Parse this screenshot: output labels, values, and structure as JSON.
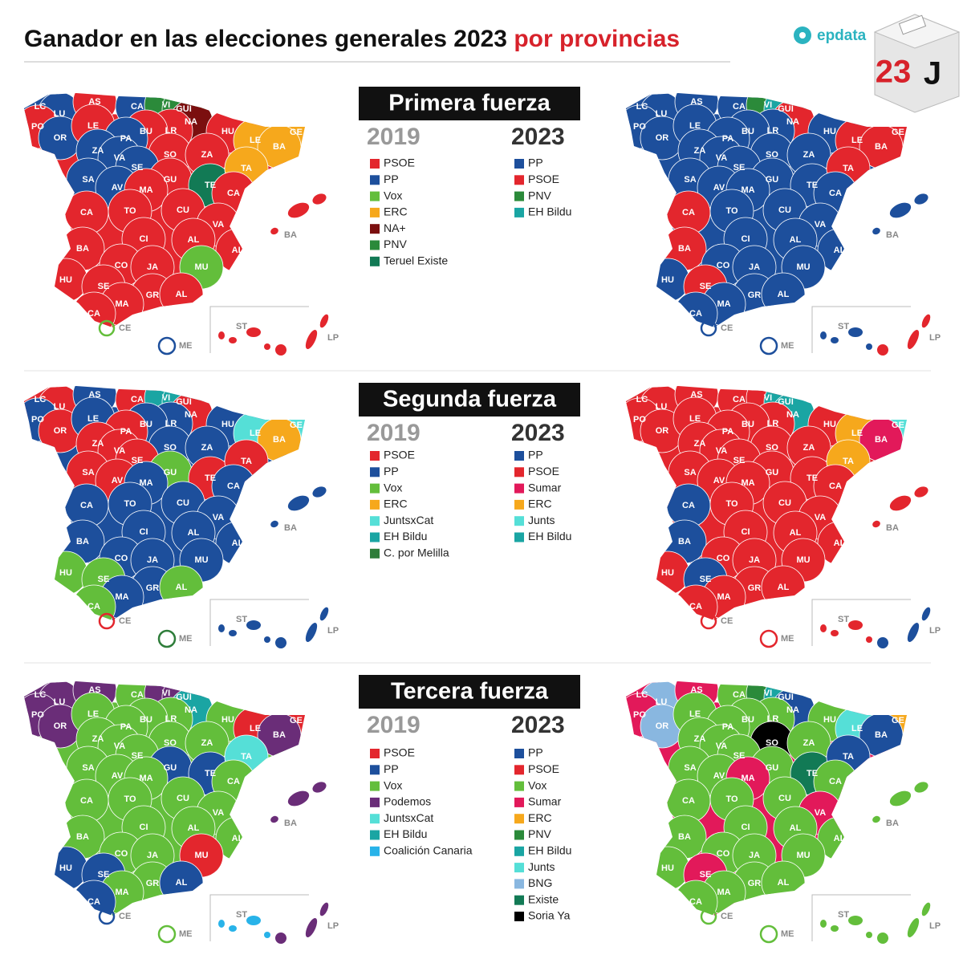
{
  "header": {
    "title": "Ganador en las elecciones generales 2023",
    "title_highlight": "por provincias",
    "brand": "epdata",
    "badge_number": "23",
    "badge_letter": "J"
  },
  "sections": [
    {
      "title": "Primera fuerza",
      "legends": [
        {
          "year": "2019",
          "items": [
            {
              "label": "PSOE",
              "color": "#e3262d"
            },
            {
              "label": "PP",
              "color": "#1d4f9c"
            },
            {
              "label": "Vox",
              "color": "#63be3b"
            },
            {
              "label": "ERC",
              "color": "#f6a81c"
            },
            {
              "label": "NA+",
              "color": "#7b0f0f"
            },
            {
              "label": "PNV",
              "color": "#2b8a3a"
            },
            {
              "label": "Teruel Existe",
              "color": "#127a55"
            }
          ]
        },
        {
          "year": "2023",
          "items": [
            {
              "label": "PP",
              "color": "#1d4f9c"
            },
            {
              "label": "PSOE",
              "color": "#e3262d"
            },
            {
              "label": "PNV",
              "color": "#2b8a3a"
            },
            {
              "label": "EH Bildu",
              "color": "#1aa5a3"
            }
          ]
        }
      ],
      "maps": [
        {
          "labels": [
            "LC",
            "LU",
            "PO",
            "OR",
            "AS",
            "LE",
            "CA",
            "VI",
            "GUI",
            "NA",
            "LR",
            "BU",
            "PA",
            "HU",
            "LE",
            "GE",
            "BA",
            "ZA",
            "VA",
            "SO",
            "ZA",
            "SA",
            "SE",
            "AV",
            "GU",
            "TE",
            "TA",
            "CA",
            "MA",
            "CA",
            "TO",
            "CU",
            "VA",
            "CI",
            "AL",
            "AL",
            "BA",
            "CO",
            "JA",
            "MU",
            "HU",
            "SE",
            "GR",
            "AL",
            "MA",
            "CA",
            "BA",
            "CE",
            "ME",
            "ST",
            "LP"
          ],
          "winners": [
            1,
            1,
            0,
            1,
            0,
            0,
            1,
            5,
            5,
            4,
            0,
            0,
            1,
            0,
            3,
            3,
            3,
            1,
            1,
            0,
            0,
            1,
            1,
            1,
            0,
            6,
            3,
            0,
            0,
            0,
            0,
            0,
            0,
            0,
            0,
            0,
            0,
            0,
            0,
            2,
            0,
            0,
            0,
            0,
            0,
            0,
            0,
            2,
            1,
            0,
            0
          ]
        },
        {
          "labels": [
            "LC",
            "LU",
            "PO",
            "OR",
            "AS",
            "LE",
            "CA",
            "VI",
            "GUI",
            "NA",
            "LR",
            "BU",
            "PA",
            "HU",
            "LE",
            "GE",
            "BA",
            "ZA",
            "VA",
            "SO",
            "ZA",
            "SA",
            "SE",
            "AV",
            "GU",
            "TE",
            "TA",
            "CA",
            "MA",
            "CA",
            "TO",
            "CU",
            "VA",
            "CI",
            "AL",
            "AL",
            "BA",
            "CO",
            "JA",
            "MU",
            "HU",
            "SE",
            "GR",
            "AL",
            "MA",
            "CA",
            "BA",
            "CE",
            "ME",
            "ST",
            "LP"
          ],
          "winners": [
            0,
            0,
            0,
            0,
            0,
            0,
            0,
            2,
            3,
            1,
            0,
            0,
            0,
            0,
            1,
            1,
            1,
            0,
            0,
            0,
            0,
            0,
            0,
            0,
            0,
            0,
            1,
            0,
            0,
            1,
            0,
            0,
            0,
            0,
            0,
            0,
            1,
            0,
            0,
            0,
            0,
            1,
            0,
            0,
            0,
            0,
            0,
            0,
            0,
            0,
            1
          ]
        }
      ]
    },
    {
      "title": "Segunda fuerza",
      "legends": [
        {
          "year": "2019",
          "items": [
            {
              "label": "PSOE",
              "color": "#e3262d"
            },
            {
              "label": "PP",
              "color": "#1d4f9c"
            },
            {
              "label": "Vox",
              "color": "#63be3b"
            },
            {
              "label": "ERC",
              "color": "#f6a81c"
            },
            {
              "label": "JuntsxCat",
              "color": "#55dfd7"
            },
            {
              "label": "EH Bildu",
              "color": "#1aa5a3"
            },
            {
              "label": "C. por Melilla",
              "color": "#2e7d3a"
            }
          ]
        },
        {
          "year": "2023",
          "items": [
            {
              "label": "PP",
              "color": "#1d4f9c"
            },
            {
              "label": "PSOE",
              "color": "#e3262d"
            },
            {
              "label": "Sumar",
              "color": "#e2195a"
            },
            {
              "label": "ERC",
              "color": "#f6a81c"
            },
            {
              "label": "Junts",
              "color": "#55dfd7"
            },
            {
              "label": "EH Bildu",
              "color": "#1aa5a3"
            }
          ]
        }
      ],
      "maps": [
        {
          "labels": [
            "LC",
            "LU",
            "PO",
            "OR",
            "AS",
            "LE",
            "CA",
            "VI",
            "GUI",
            "NA",
            "LR",
            "BU",
            "PA",
            "HU",
            "LE",
            "GE",
            "BA",
            "ZA",
            "VA",
            "SO",
            "ZA",
            "SA",
            "SE",
            "AV",
            "GU",
            "TE",
            "TA",
            "CA",
            "MA",
            "CA",
            "TO",
            "CU",
            "VA",
            "CI",
            "AL",
            "AL",
            "BA",
            "CO",
            "JA",
            "MU",
            "HU",
            "SE",
            "GR",
            "AL",
            "MA",
            "CA",
            "BA",
            "CE",
            "ME",
            "ST",
            "LP"
          ],
          "winners": [
            0,
            0,
            1,
            0,
            1,
            1,
            0,
            5,
            5,
            0,
            1,
            1,
            0,
            1,
            4,
            4,
            3,
            0,
            0,
            1,
            1,
            0,
            0,
            0,
            2,
            0,
            0,
            1,
            1,
            1,
            1,
            1,
            1,
            1,
            1,
            1,
            1,
            1,
            1,
            1,
            2,
            2,
            1,
            2,
            1,
            2,
            1,
            0,
            6,
            1,
            1
          ]
        },
        {
          "labels": [
            "LC",
            "LU",
            "PO",
            "OR",
            "AS",
            "LE",
            "CA",
            "VI",
            "GUI",
            "NA",
            "LR",
            "BU",
            "PA",
            "HU",
            "LE",
            "GE",
            "BA",
            "ZA",
            "VA",
            "SO",
            "ZA",
            "SA",
            "SE",
            "AV",
            "GU",
            "TE",
            "TA",
            "CA",
            "MA",
            "CA",
            "TO",
            "CU",
            "VA",
            "CI",
            "AL",
            "AL",
            "BA",
            "CO",
            "JA",
            "MU",
            "HU",
            "SE",
            "GR",
            "AL",
            "MA",
            "CA",
            "BA",
            "CE",
            "ME",
            "ST",
            "LP"
          ],
          "winners": [
            1,
            1,
            1,
            1,
            1,
            1,
            1,
            1,
            5,
            5,
            1,
            1,
            1,
            1,
            3,
            4,
            2,
            1,
            1,
            1,
            1,
            1,
            1,
            1,
            1,
            1,
            3,
            1,
            1,
            0,
            1,
            1,
            1,
            1,
            1,
            1,
            0,
            1,
            1,
            1,
            1,
            0,
            1,
            1,
            1,
            1,
            1,
            1,
            1,
            1,
            0
          ]
        }
      ]
    },
    {
      "title": "Tercera fuerza",
      "legends": [
        {
          "year": "2019",
          "items": [
            {
              "label": "PSOE",
              "color": "#e3262d"
            },
            {
              "label": "PP",
              "color": "#1d4f9c"
            },
            {
              "label": "Vox",
              "color": "#63be3b"
            },
            {
              "label": "Podemos",
              "color": "#6a2d78"
            },
            {
              "label": "JuntsxCat",
              "color": "#55dfd7"
            },
            {
              "label": "EH Bildu",
              "color": "#1aa5a3"
            },
            {
              "label": "Coalición Canaria",
              "color": "#28b3e9"
            }
          ]
        },
        {
          "year": "2023",
          "items": [
            {
              "label": "PP",
              "color": "#1d4f9c"
            },
            {
              "label": "PSOE",
              "color": "#e3262d"
            },
            {
              "label": "Vox",
              "color": "#63be3b"
            },
            {
              "label": "Sumar",
              "color": "#e2195a"
            },
            {
              "label": "ERC",
              "color": "#f6a81c"
            },
            {
              "label": "PNV",
              "color": "#2b8a3a"
            },
            {
              "label": "EH Bildu",
              "color": "#1aa5a3"
            },
            {
              "label": "Junts",
              "color": "#55dfd7"
            },
            {
              "label": "BNG",
              "color": "#89b7e0"
            },
            {
              "label": "Existe",
              "color": "#127a55"
            },
            {
              "label": "Soria Ya",
              "color": "#000000"
            }
          ]
        }
      ],
      "maps": [
        {
          "labels": [
            "LC",
            "LU",
            "PO",
            "OR",
            "AS",
            "LE",
            "CA",
            "VI",
            "GUI",
            "NA",
            "LR",
            "BU",
            "PA",
            "HU",
            "LE",
            "GE",
            "BA",
            "ZA",
            "VA",
            "SO",
            "ZA",
            "SA",
            "SE",
            "AV",
            "GU",
            "TE",
            "TA",
            "CA",
            "MA",
            "CA",
            "TO",
            "CU",
            "VA",
            "CI",
            "AL",
            "AL",
            "BA",
            "CO",
            "JA",
            "MU",
            "HU",
            "SE",
            "GR",
            "AL",
            "MA",
            "CA",
            "BA",
            "CE",
            "ME",
            "ST",
            "LP"
          ],
          "winners": [
            3,
            3,
            3,
            3,
            3,
            2,
            2,
            3,
            3,
            5,
            2,
            2,
            2,
            2,
            0,
            0,
            3,
            2,
            2,
            2,
            2,
            2,
            2,
            2,
            1,
            1,
            4,
            2,
            2,
            2,
            2,
            2,
            2,
            2,
            2,
            2,
            2,
            2,
            2,
            0,
            1,
            1,
            2,
            1,
            2,
            1,
            3,
            1,
            2,
            6,
            3
          ]
        },
        {
          "labels": [
            "LC",
            "LU",
            "PO",
            "OR",
            "AS",
            "LE",
            "CA",
            "VI",
            "GUI",
            "NA",
            "LR",
            "BU",
            "PA",
            "HU",
            "LE",
            "GE",
            "BA",
            "ZA",
            "VA",
            "SO",
            "ZA",
            "SA",
            "SE",
            "AV",
            "GU",
            "TE",
            "TA",
            "CA",
            "MA",
            "CA",
            "TO",
            "CU",
            "VA",
            "CI",
            "AL",
            "AL",
            "BA",
            "CO",
            "JA",
            "MU",
            "HU",
            "SE",
            "GR",
            "AL",
            "MA",
            "CA",
            "BA",
            "CE",
            "ME",
            "ST",
            "LP"
          ],
          "winners": [
            3,
            8,
            3,
            8,
            3,
            2,
            2,
            5,
            6,
            0,
            2,
            2,
            2,
            2,
            7,
            4,
            0,
            2,
            2,
            10,
            2,
            2,
            2,
            2,
            2,
            9,
            0,
            2,
            3,
            2,
            2,
            2,
            3,
            2,
            2,
            2,
            2,
            2,
            2,
            2,
            2,
            3,
            2,
            2,
            2,
            2,
            2,
            2,
            2,
            2,
            2
          ]
        }
      ]
    }
  ]
}
